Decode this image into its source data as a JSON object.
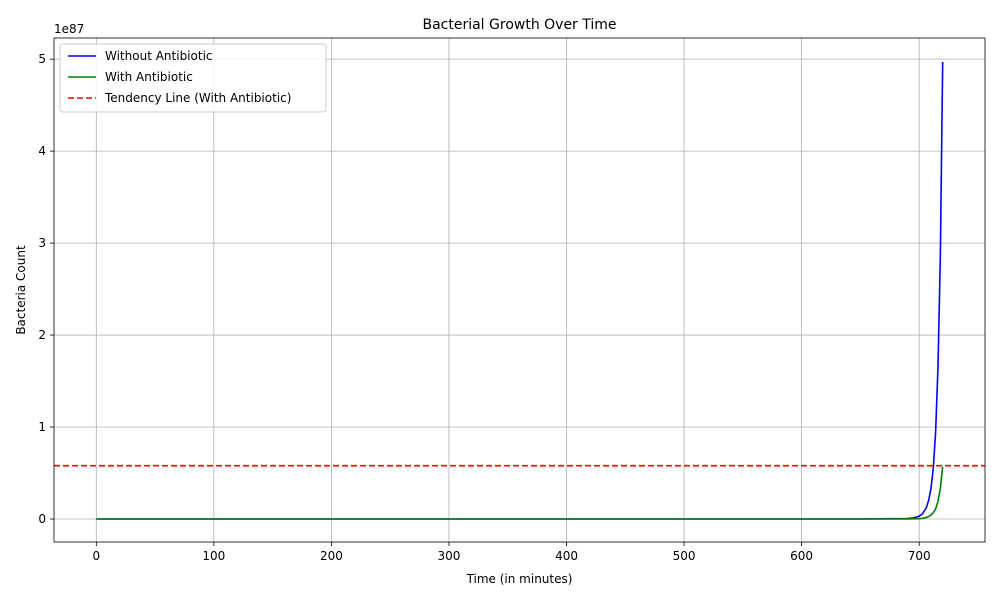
{
  "chart_data": {
    "type": "line",
    "title": "Bacterial Growth Over Time",
    "xlabel": "Time (in minutes)",
    "ylabel": "Bacteria Count",
    "y_offset_label": "1e87",
    "xlim": [
      -36,
      756
    ],
    "ylim": [
      -0.25,
      5.23
    ],
    "xticks": [
      0,
      100,
      200,
      300,
      400,
      500,
      600,
      700
    ],
    "xtick_labels": [
      "0",
      "100",
      "200",
      "300",
      "400",
      "500",
      "600",
      "700"
    ],
    "yticks": [
      0,
      1,
      2,
      3,
      4,
      5
    ],
    "ytick_labels": [
      "0",
      "1",
      "2",
      "3",
      "4",
      "5"
    ],
    "grid": true,
    "legend_position": "top-left",
    "series": [
      {
        "name": "Without Antibiotic",
        "color": "#0000ff",
        "style": "solid",
        "x": [
          0,
          100,
          200,
          300,
          400,
          500,
          600,
          650,
          690,
          695,
          700,
          703,
          706,
          708,
          710,
          712,
          714,
          716,
          718,
          720
        ],
        "y": [
          0,
          0,
          0,
          0,
          0,
          0,
          0,
          0,
          0.005,
          0.012,
          0.03,
          0.06,
          0.12,
          0.2,
          0.33,
          0.55,
          0.95,
          1.65,
          2.85,
          4.97
        ]
      },
      {
        "name": "With Antibiotic",
        "color": "#008000",
        "style": "solid",
        "x": [
          0,
          100,
          200,
          300,
          400,
          500,
          600,
          650,
          690,
          695,
          700,
          703,
          706,
          708,
          710,
          712,
          714,
          716,
          718,
          720
        ],
        "y": [
          0,
          0,
          0,
          0,
          0,
          0,
          0,
          0,
          0.001,
          0.002,
          0.004,
          0.008,
          0.016,
          0.026,
          0.043,
          0.07,
          0.11,
          0.19,
          0.33,
          0.57
        ]
      },
      {
        "name": "Tendency Line (With Antibiotic)",
        "color": "#ff0000",
        "style": "dashed",
        "hline": 0.58
      }
    ]
  }
}
